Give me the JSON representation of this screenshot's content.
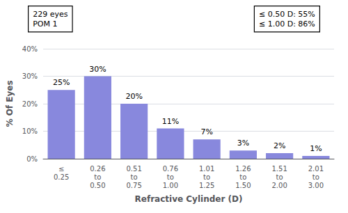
{
  "chart_data": {
    "type": "bar",
    "categories": [
      "≤\n0.25",
      "0.26\nto\n0.50",
      "0.51\nto\n0.75",
      "0.76\nto\n1.00",
      "1.01\nto\n1.25",
      "1.26\nto\n1.50",
      "1.51\nto\n2.00",
      "2.01\nto\n3.00"
    ],
    "values": [
      25,
      30,
      20,
      11,
      7,
      3,
      2,
      1
    ],
    "value_labels": [
      "25%",
      "30%",
      "20%",
      "11%",
      "7%",
      "3%",
      "2%",
      "1%"
    ],
    "data_labels": true,
    "color": "#8888dd",
    "xlabel": "Refractive Cylinder (D)",
    "ylabel": "% Of Eyes",
    "ylim": [
      0,
      40
    ],
    "yticks": [
      {
        "value": 0,
        "label": "0%"
      },
      {
        "value": 10,
        "label": "10%"
      },
      {
        "value": 20,
        "label": "20%"
      },
      {
        "value": 30,
        "label": "30%"
      },
      {
        "value": 40,
        "label": "40%"
      }
    ],
    "grid": true,
    "annotations": [
      "229 eyes\nPOM 1",
      "≤ 0.50 D: 55%\n≤ 1.00 D: 86%"
    ]
  }
}
